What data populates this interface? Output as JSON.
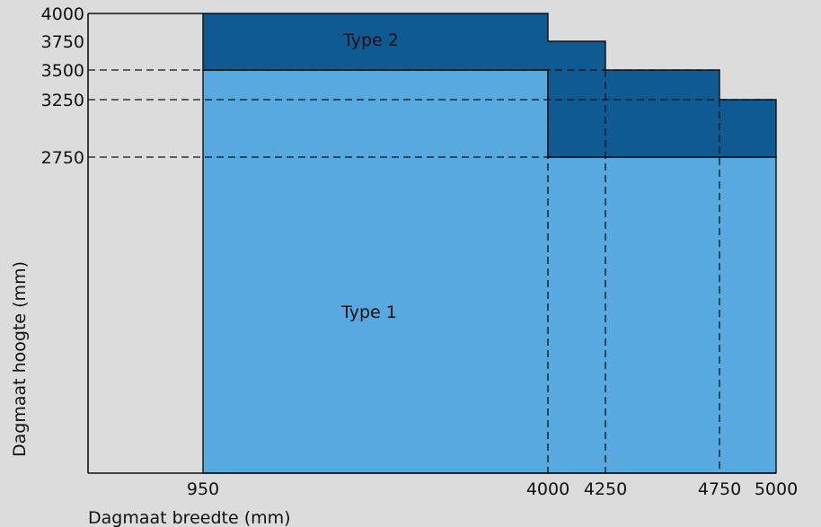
{
  "chart_data": {
    "type": "area",
    "xlabel": "Dagmaat breedte (mm)",
    "ylabel": "Dagmaat hoogte (mm)",
    "xlim": [
      0,
      5000
    ],
    "ylim": [
      0,
      4000
    ],
    "x_ticks": [
      950,
      4000,
      4250,
      4750,
      5000
    ],
    "y_ticks": [
      2750,
      3250,
      3500,
      3750,
      4000
    ],
    "series": [
      {
        "name": "Type 1",
        "color": "#57a9df",
        "outline": [
          [
            950,
            0
          ],
          [
            950,
            3500
          ],
          [
            4000,
            3500
          ],
          [
            4000,
            2750
          ],
          [
            5000,
            2750
          ],
          [
            5000,
            0
          ]
        ]
      },
      {
        "name": "Type 2",
        "color": "#0e5a91",
        "outline": [
          [
            950,
            3500
          ],
          [
            950,
            4000
          ],
          [
            4000,
            4000
          ],
          [
            4000,
            3750
          ],
          [
            4250,
            3750
          ],
          [
            4250,
            3500
          ],
          [
            4750,
            3500
          ],
          [
            4750,
            3250
          ],
          [
            5000,
            3250
          ],
          [
            5000,
            2750
          ],
          [
            4000,
            2750
          ],
          [
            4000,
            3500
          ]
        ]
      }
    ],
    "dashed_h": [
      2750,
      3250,
      3500
    ],
    "dashed_v": [
      4000,
      4250,
      4750
    ]
  }
}
